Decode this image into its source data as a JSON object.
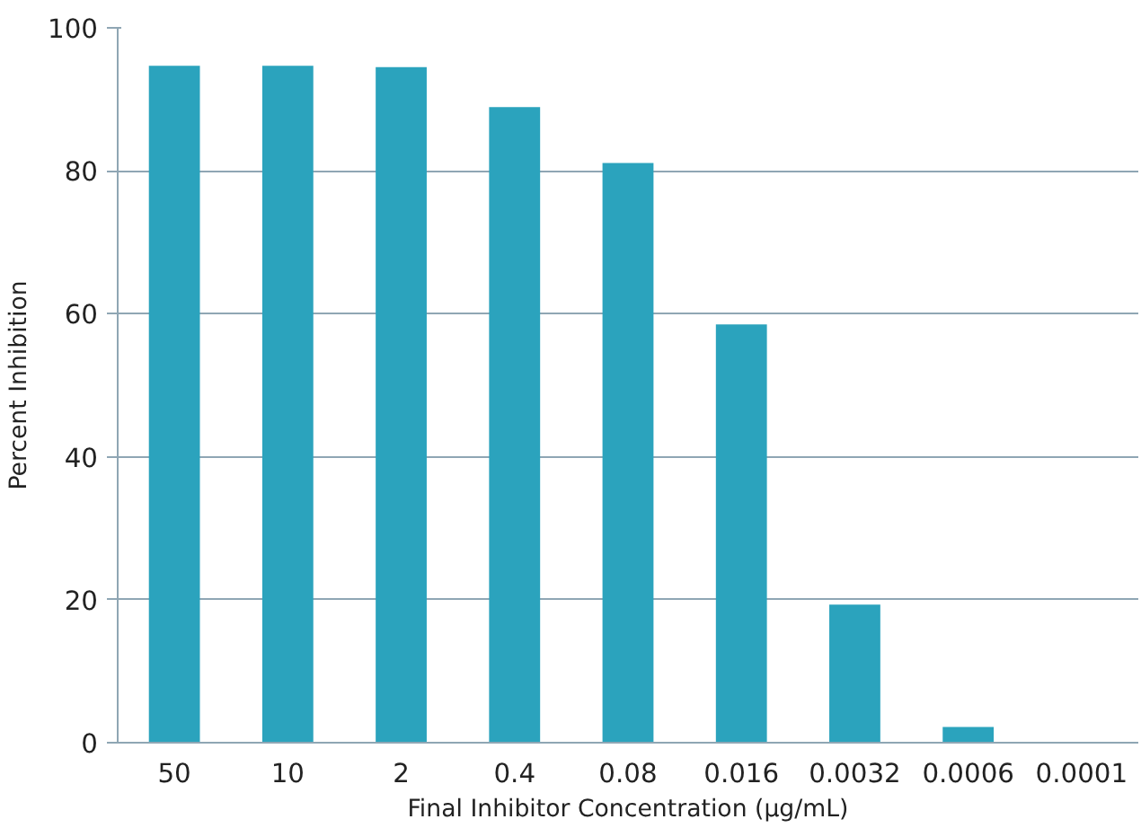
{
  "chart_data": {
    "type": "bar",
    "xlabel": "Final Inhibitor Concentration (µg/mL)",
    "ylabel": "Percent Inhibition",
    "categories": [
      "50",
      "10",
      "2",
      "0.4",
      "0.08",
      "0.016",
      "0.0032",
      "0.0006",
      "0.0001"
    ],
    "values": [
      94.7,
      94.7,
      94.5,
      88.9,
      81.1,
      58.5,
      19.3,
      2.2,
      0
    ],
    "color": "#2ba3bd",
    "ylim": [
      0,
      100
    ],
    "yticks": [
      0,
      20,
      40,
      60,
      80,
      100
    ],
    "grid": "y"
  }
}
